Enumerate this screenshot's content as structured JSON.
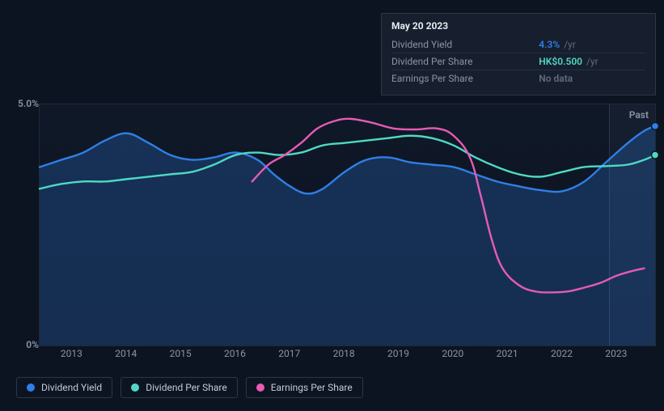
{
  "chart": {
    "type": "line",
    "background_color": "#0d1421",
    "grid_border_color": "#1e2a3a",
    "axis_label_color": "#8a94a6",
    "axis_fontsize": 12,
    "y": {
      "min": 0,
      "max": 5,
      "ticks": [
        {
          "v": 0,
          "label": "0%"
        },
        {
          "v": 5,
          "label": "5.0%"
        }
      ]
    },
    "x": {
      "min": 2012.4,
      "max": 2023.7,
      "ticks": [
        {
          "v": 2013,
          "label": "2013"
        },
        {
          "v": 2014,
          "label": "2014"
        },
        {
          "v": 2015,
          "label": "2015"
        },
        {
          "v": 2016,
          "label": "2016"
        },
        {
          "v": 2017,
          "label": "2017"
        },
        {
          "v": 2018,
          "label": "2018"
        },
        {
          "v": 2019,
          "label": "2019"
        },
        {
          "v": 2020,
          "label": "2020"
        },
        {
          "v": 2021,
          "label": "2021"
        },
        {
          "v": 2022,
          "label": "2022"
        },
        {
          "v": 2023,
          "label": "2023"
        }
      ]
    },
    "past_label": "Past",
    "cutoff_x": 2022.85,
    "line_width": 2.4,
    "series": [
      {
        "name": "Dividend Yield",
        "color": "#2f7fe6",
        "fill": "rgba(47,127,230,0.25)",
        "end_dot": true,
        "points": [
          [
            2012.4,
            3.7
          ],
          [
            2012.8,
            3.85
          ],
          [
            2013.2,
            4.0
          ],
          [
            2013.6,
            4.25
          ],
          [
            2014.0,
            4.4
          ],
          [
            2014.4,
            4.2
          ],
          [
            2014.8,
            3.95
          ],
          [
            2015.2,
            3.85
          ],
          [
            2015.6,
            3.9
          ],
          [
            2016.0,
            4.0
          ],
          [
            2016.4,
            3.85
          ],
          [
            2016.7,
            3.55
          ],
          [
            2017.0,
            3.3
          ],
          [
            2017.3,
            3.15
          ],
          [
            2017.6,
            3.25
          ],
          [
            2018.0,
            3.6
          ],
          [
            2018.4,
            3.85
          ],
          [
            2018.8,
            3.9
          ],
          [
            2019.2,
            3.8
          ],
          [
            2019.6,
            3.75
          ],
          [
            2020.0,
            3.7
          ],
          [
            2020.4,
            3.55
          ],
          [
            2020.8,
            3.4
          ],
          [
            2021.2,
            3.3
          ],
          [
            2021.6,
            3.22
          ],
          [
            2022.0,
            3.2
          ],
          [
            2022.4,
            3.4
          ],
          [
            2022.8,
            3.8
          ],
          [
            2023.2,
            4.2
          ],
          [
            2023.5,
            4.45
          ],
          [
            2023.7,
            4.55
          ]
        ]
      },
      {
        "name": "Dividend Per Share",
        "color": "#4fd9c4",
        "end_dot": true,
        "points": [
          [
            2012.4,
            3.25
          ],
          [
            2012.8,
            3.35
          ],
          [
            2013.2,
            3.4
          ],
          [
            2013.6,
            3.4
          ],
          [
            2014.0,
            3.45
          ],
          [
            2014.4,
            3.5
          ],
          [
            2014.8,
            3.55
          ],
          [
            2015.2,
            3.6
          ],
          [
            2015.6,
            3.75
          ],
          [
            2016.0,
            3.95
          ],
          [
            2016.4,
            4.0
          ],
          [
            2016.8,
            3.95
          ],
          [
            2017.2,
            4.0
          ],
          [
            2017.6,
            4.15
          ],
          [
            2018.0,
            4.2
          ],
          [
            2018.4,
            4.25
          ],
          [
            2018.8,
            4.3
          ],
          [
            2019.2,
            4.35
          ],
          [
            2019.6,
            4.3
          ],
          [
            2020.0,
            4.15
          ],
          [
            2020.4,
            3.9
          ],
          [
            2020.8,
            3.7
          ],
          [
            2021.2,
            3.55
          ],
          [
            2021.6,
            3.5
          ],
          [
            2022.0,
            3.6
          ],
          [
            2022.4,
            3.7
          ],
          [
            2022.8,
            3.72
          ],
          [
            2023.2,
            3.75
          ],
          [
            2023.5,
            3.85
          ],
          [
            2023.7,
            3.95
          ]
        ]
      },
      {
        "name": "Earnings Per Share",
        "color": "#e75bb3",
        "points": [
          [
            2016.3,
            3.4
          ],
          [
            2016.6,
            3.75
          ],
          [
            2016.9,
            3.95
          ],
          [
            2017.2,
            4.2
          ],
          [
            2017.5,
            4.5
          ],
          [
            2017.8,
            4.65
          ],
          [
            2018.1,
            4.7
          ],
          [
            2018.5,
            4.62
          ],
          [
            2018.9,
            4.5
          ],
          [
            2019.3,
            4.48
          ],
          [
            2019.7,
            4.5
          ],
          [
            2020.0,
            4.35
          ],
          [
            2020.3,
            3.9
          ],
          [
            2020.5,
            3.1
          ],
          [
            2020.7,
            2.2
          ],
          [
            2020.9,
            1.6
          ],
          [
            2021.2,
            1.25
          ],
          [
            2021.5,
            1.12
          ],
          [
            2021.8,
            1.1
          ],
          [
            2022.1,
            1.12
          ],
          [
            2022.4,
            1.2
          ],
          [
            2022.7,
            1.3
          ],
          [
            2023.0,
            1.45
          ],
          [
            2023.3,
            1.55
          ],
          [
            2023.5,
            1.6
          ]
        ]
      }
    ]
  },
  "tooltip": {
    "date": "May 20 2023",
    "rows": [
      {
        "label": "Dividend Yield",
        "value": "4.3%",
        "value_color": "#2f7fe6",
        "suffix": "/yr"
      },
      {
        "label": "Dividend Per Share",
        "value": "HK$0.500",
        "value_color": "#4fd9c4",
        "suffix": "/yr"
      },
      {
        "label": "Earnings Per Share",
        "value": "No data",
        "value_color": "#5e6b80",
        "suffix": ""
      }
    ]
  },
  "legend": [
    {
      "label": "Dividend Yield",
      "color": "#2f7fe6"
    },
    {
      "label": "Dividend Per Share",
      "color": "#4fd9c4"
    },
    {
      "label": "Earnings Per Share",
      "color": "#e75bb3"
    }
  ]
}
